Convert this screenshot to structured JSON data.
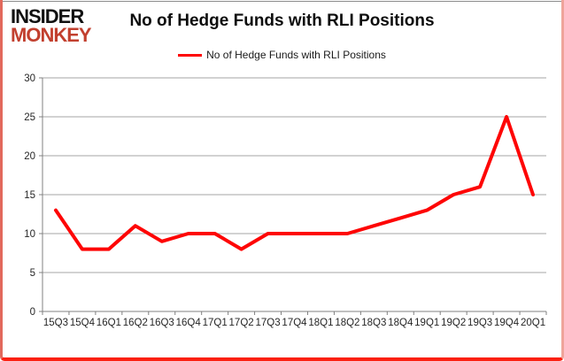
{
  "logo": {
    "line1": "INSIDER",
    "line2": "MONKEY",
    "brand_red": "#c2402f"
  },
  "title": "No of Hedge Funds with RLI Positions",
  "legend": {
    "label": "No of Hedge Funds with RLI Positions"
  },
  "chart_data": {
    "type": "line",
    "title": "No of Hedge Funds with RLI Positions",
    "categories": [
      "15Q3",
      "15Q4",
      "16Q1",
      "16Q2",
      "16Q3",
      "16Q4",
      "17Q1",
      "17Q2",
      "17Q3",
      "17Q4",
      "18Q1",
      "18Q2",
      "18Q3",
      "18Q4",
      "19Q1",
      "19Q2",
      "19Q3",
      "19Q4",
      "20Q1"
    ],
    "series": [
      {
        "name": "No of Hedge Funds with RLI Positions",
        "color": "#fe0505",
        "values": [
          13,
          8,
          8,
          11,
          9,
          10,
          10,
          8,
          10,
          10,
          10,
          10,
          11,
          12,
          13,
          15,
          16,
          25,
          15
        ]
      }
    ],
    "xlabel": "",
    "ylabel": "",
    "ylim": [
      0,
      30
    ],
    "ytick_interval": 5,
    "yticks": [
      0,
      5,
      10,
      15,
      20,
      25,
      30
    ],
    "grid": true,
    "legend_position": "top",
    "gridline_color": "#a6a6a6",
    "axis_color": "#808080",
    "label_color": "#262626"
  }
}
